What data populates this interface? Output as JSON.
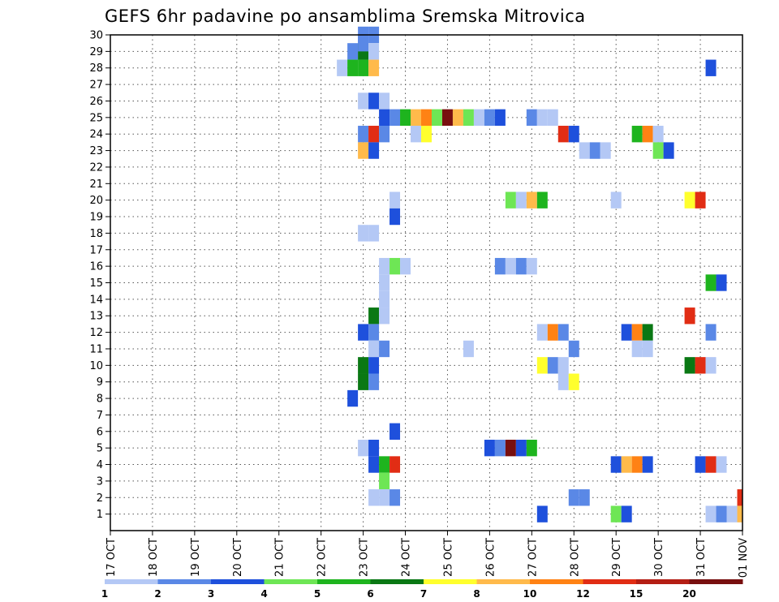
{
  "chart_data": {
    "type": "heatmap",
    "title": "GEFS 6hr padavine po ansamblima Sremska Mitrovica",
    "xlabel": "",
    "ylabel": "",
    "x_ticks": [
      "17 OCT",
      "18 OCT",
      "19 OCT",
      "20 OCT",
      "21 OCT",
      "22 OCT",
      "23 OCT",
      "24 OCT",
      "25 OCT",
      "26 OCT",
      "27 OCT",
      "28 OCT",
      "29 OCT",
      "30 OCT",
      "31 OCT",
      "01 NOV"
    ],
    "y_ticks": [
      1,
      2,
      3,
      4,
      5,
      6,
      7,
      8,
      9,
      10,
      11,
      12,
      13,
      14,
      15,
      16,
      17,
      18,
      19,
      20,
      21,
      22,
      23,
      24,
      25,
      26,
      27,
      28,
      29,
      30
    ],
    "grid": true,
    "x_start": "17 OCT 00Z",
    "time_step_hours": 6,
    "colorbar": {
      "labels": [
        "1",
        "2",
        "3",
        "4",
        "5",
        "6",
        "7",
        "8",
        "10",
        "12",
        "15",
        "20"
      ],
      "colors": [
        "#b4c8f5",
        "#5a88e6",
        "#1e50dc",
        "#6ee655",
        "#1eb41e",
        "#0a7814",
        "#ffff2d",
        "#ffba4b",
        "#ff8214",
        "#e12d14",
        "#b41e14",
        "#780f0f"
      ]
    },
    "cells": [
      {
        "x": "23 OCT 00Z",
        "y": 30,
        "class": 2
      },
      {
        "x": "23 OCT 06Z",
        "y": 30,
        "class": 2
      },
      {
        "x": "22 OCT 18Z",
        "y": 29,
        "class": 2
      },
      {
        "x": "23 OCT 00Z",
        "y": 29,
        "class": 6
      },
      {
        "x": "23 OCT 00Z",
        "y": 29.5,
        "class": 2
      },
      {
        "x": "23 OCT 06Z",
        "y": 29,
        "class": 1
      },
      {
        "x": "22 OCT 12Z",
        "y": 28,
        "class": 1
      },
      {
        "x": "22 OCT 18Z",
        "y": 28,
        "class": 5
      },
      {
        "x": "23 OCT 00Z",
        "y": 28,
        "class": 5
      },
      {
        "x": "23 OCT 06Z",
        "y": 28,
        "class": 8
      },
      {
        "x": "31 OCT 06Z",
        "y": 28,
        "class": 3
      },
      {
        "x": "23 OCT 00Z",
        "y": 26,
        "class": 1
      },
      {
        "x": "23 OCT 06Z",
        "y": 26,
        "class": 3
      },
      {
        "x": "23 OCT 12Z",
        "y": 26,
        "class": 1
      },
      {
        "x": "23 OCT 12Z",
        "y": 25,
        "class": 3
      },
      {
        "x": "23 OCT 18Z",
        "y": 25,
        "class": 2
      },
      {
        "x": "24 OCT 00Z",
        "y": 25,
        "class": 5
      },
      {
        "x": "24 OCT 06Z",
        "y": 25,
        "class": 8
      },
      {
        "x": "24 OCT 12Z",
        "y": 25,
        "class": 9
      },
      {
        "x": "24 OCT 18Z",
        "y": 25,
        "class": 4
      },
      {
        "x": "25 OCT 00Z",
        "y": 25,
        "class": 12
      },
      {
        "x": "25 OCT 06Z",
        "y": 25,
        "class": 8
      },
      {
        "x": "25 OCT 12Z",
        "y": 25,
        "class": 4
      },
      {
        "x": "25 OCT 18Z",
        "y": 25,
        "class": 1
      },
      {
        "x": "26 OCT 00Z",
        "y": 25,
        "class": 2
      },
      {
        "x": "26 OCT 06Z",
        "y": 25,
        "class": 3
      },
      {
        "x": "27 OCT 00Z",
        "y": 25,
        "class": 2
      },
      {
        "x": "27 OCT 06Z",
        "y": 25,
        "class": 1
      },
      {
        "x": "27 OCT 12Z",
        "y": 25,
        "class": 1
      },
      {
        "x": "23 OCT 00Z",
        "y": 24,
        "class": 2
      },
      {
        "x": "23 OCT 06Z",
        "y": 24,
        "class": 10
      },
      {
        "x": "23 OCT 12Z",
        "y": 24,
        "class": 2
      },
      {
        "x": "24 OCT 06Z",
        "y": 24,
        "class": 1
      },
      {
        "x": "24 OCT 12Z",
        "y": 24,
        "class": 7
      },
      {
        "x": "27 OCT 18Z",
        "y": 24,
        "class": 10
      },
      {
        "x": "28 OCT 00Z",
        "y": 24,
        "class": 3
      },
      {
        "x": "29 OCT 12Z",
        "y": 24,
        "class": 5
      },
      {
        "x": "29 OCT 18Z",
        "y": 24,
        "class": 9
      },
      {
        "x": "30 OCT 00Z",
        "y": 24,
        "class": 1
      },
      {
        "x": "23 OCT 00Z",
        "y": 23,
        "class": 8
      },
      {
        "x": "23 OCT 06Z",
        "y": 23,
        "class": 3
      },
      {
        "x": "28 OCT 06Z",
        "y": 23,
        "class": 1
      },
      {
        "x": "28 OCT 12Z",
        "y": 23,
        "class": 2
      },
      {
        "x": "28 OCT 18Z",
        "y": 23,
        "class": 1
      },
      {
        "x": "30 OCT 00Z",
        "y": 23,
        "class": 4
      },
      {
        "x": "30 OCT 06Z",
        "y": 23,
        "class": 3
      },
      {
        "x": "23 OCT 18Z",
        "y": 20,
        "class": 1
      },
      {
        "x": "26 OCT 12Z",
        "y": 20,
        "class": 4
      },
      {
        "x": "26 OCT 18Z",
        "y": 20,
        "class": 1
      },
      {
        "x": "27 OCT 00Z",
        "y": 20,
        "class": 8
      },
      {
        "x": "27 OCT 06Z",
        "y": 20,
        "class": 5
      },
      {
        "x": "29 OCT 00Z",
        "y": 20,
        "class": 1
      },
      {
        "x": "30 OCT 18Z",
        "y": 20,
        "class": 7
      },
      {
        "x": "31 OCT 00Z",
        "y": 20,
        "class": 10
      },
      {
        "x": "23 OCT 18Z",
        "y": 19,
        "class": 3
      },
      {
        "x": "23 OCT 00Z",
        "y": 18,
        "class": 1
      },
      {
        "x": "23 OCT 06Z",
        "y": 18,
        "class": 1
      },
      {
        "x": "23 OCT 12Z",
        "y": 16,
        "class": 1
      },
      {
        "x": "23 OCT 18Z",
        "y": 16,
        "class": 4
      },
      {
        "x": "24 OCT 00Z",
        "y": 16,
        "class": 1
      },
      {
        "x": "26 OCT 06Z",
        "y": 16,
        "class": 2
      },
      {
        "x": "26 OCT 12Z",
        "y": 16,
        "class": 1
      },
      {
        "x": "26 OCT 18Z",
        "y": 16,
        "class": 2
      },
      {
        "x": "27 OCT 00Z",
        "y": 16,
        "class": 1
      },
      {
        "x": "23 OCT 12Z",
        "y": 15,
        "class": 1
      },
      {
        "x": "31 OCT 06Z",
        "y": 15,
        "class": 5
      },
      {
        "x": "31 OCT 12Z",
        "y": 15,
        "class": 3
      },
      {
        "x": "23 OCT 12Z",
        "y": 14,
        "class": 1
      },
      {
        "x": "23 OCT 06Z",
        "y": 13,
        "class": 6
      },
      {
        "x": "23 OCT 12Z",
        "y": 13,
        "class": 1
      },
      {
        "x": "30 OCT 18Z",
        "y": 13,
        "class": 10
      },
      {
        "x": "23 OCT 00Z",
        "y": 12,
        "class": 3
      },
      {
        "x": "23 OCT 06Z",
        "y": 12,
        "class": 2
      },
      {
        "x": "27 OCT 06Z",
        "y": 12,
        "class": 1
      },
      {
        "x": "27 OCT 12Z",
        "y": 12,
        "class": 9
      },
      {
        "x": "27 OCT 18Z",
        "y": 12,
        "class": 2
      },
      {
        "x": "29 OCT 06Z",
        "y": 12,
        "class": 3
      },
      {
        "x": "29 OCT 12Z",
        "y": 12,
        "class": 9
      },
      {
        "x": "29 OCT 18Z",
        "y": 12,
        "class": 6
      },
      {
        "x": "31 OCT 06Z",
        "y": 12,
        "class": 2
      },
      {
        "x": "23 OCT 06Z",
        "y": 11,
        "class": 1
      },
      {
        "x": "23 OCT 12Z",
        "y": 11,
        "class": 2
      },
      {
        "x": "25 OCT 12Z",
        "y": 11,
        "class": 1
      },
      {
        "x": "28 OCT 00Z",
        "y": 11,
        "class": 2
      },
      {
        "x": "29 OCT 12Z",
        "y": 11,
        "class": 1
      },
      {
        "x": "29 OCT 18Z",
        "y": 11,
        "class": 1
      },
      {
        "x": "23 OCT 00Z",
        "y": 10,
        "class": 6
      },
      {
        "x": "23 OCT 06Z",
        "y": 10,
        "class": 3
      },
      {
        "x": "27 OCT 06Z",
        "y": 10,
        "class": 7
      },
      {
        "x": "27 OCT 12Z",
        "y": 10,
        "class": 2
      },
      {
        "x": "27 OCT 18Z",
        "y": 10,
        "class": 1
      },
      {
        "x": "30 OCT 18Z",
        "y": 10,
        "class": 6
      },
      {
        "x": "31 OCT 00Z",
        "y": 10,
        "class": 10
      },
      {
        "x": "31 OCT 06Z",
        "y": 10,
        "class": 1
      },
      {
        "x": "23 OCT 00Z",
        "y": 9,
        "class": 6
      },
      {
        "x": "23 OCT 06Z",
        "y": 9,
        "class": 2
      },
      {
        "x": "27 OCT 18Z",
        "y": 9,
        "class": 1
      },
      {
        "x": "28 OCT 00Z",
        "y": 9,
        "class": 7
      },
      {
        "x": "22 OCT 18Z",
        "y": 8,
        "class": 3
      },
      {
        "x": "23 OCT 18Z",
        "y": 6,
        "class": 3
      },
      {
        "x": "23 OCT 00Z",
        "y": 5,
        "class": 1
      },
      {
        "x": "23 OCT 06Z",
        "y": 5,
        "class": 3
      },
      {
        "x": "26 OCT 00Z",
        "y": 5,
        "class": 3
      },
      {
        "x": "26 OCT 06Z",
        "y": 5,
        "class": 2
      },
      {
        "x": "26 OCT 12Z",
        "y": 5,
        "class": 12
      },
      {
        "x": "26 OCT 18Z",
        "y": 5,
        "class": 3
      },
      {
        "x": "27 OCT 00Z",
        "y": 5,
        "class": 5
      },
      {
        "x": "23 OCT 06Z",
        "y": 4,
        "class": 3
      },
      {
        "x": "23 OCT 12Z",
        "y": 4,
        "class": 5
      },
      {
        "x": "23 OCT 18Z",
        "y": 4,
        "class": 10
      },
      {
        "x": "29 OCT 00Z",
        "y": 4,
        "class": 3
      },
      {
        "x": "29 OCT 06Z",
        "y": 4,
        "class": 8
      },
      {
        "x": "29 OCT 12Z",
        "y": 4,
        "class": 9
      },
      {
        "x": "29 OCT 18Z",
        "y": 4,
        "class": 3
      },
      {
        "x": "31 OCT 00Z",
        "y": 4,
        "class": 3
      },
      {
        "x": "31 OCT 06Z",
        "y": 4,
        "class": 10
      },
      {
        "x": "31 OCT 12Z",
        "y": 4,
        "class": 1
      },
      {
        "x": "23 OCT 12Z",
        "y": 3,
        "class": 4
      },
      {
        "x": "23 OCT 06Z",
        "y": 2,
        "class": 1
      },
      {
        "x": "23 OCT 12Z",
        "y": 2,
        "class": 1
      },
      {
        "x": "23 OCT 18Z",
        "y": 2,
        "class": 2
      },
      {
        "x": "28 OCT 00Z",
        "y": 2,
        "class": 2
      },
      {
        "x": "28 OCT 06Z",
        "y": 2,
        "class": 2
      },
      {
        "x": "01 NOV 00Z",
        "y": 2,
        "class": 10
      },
      {
        "x": "27 OCT 06Z",
        "y": 1,
        "class": 3
      },
      {
        "x": "29 OCT 00Z",
        "y": 1,
        "class": 4
      },
      {
        "x": "29 OCT 06Z",
        "y": 1,
        "class": 3
      },
      {
        "x": "31 OCT 06Z",
        "y": 1,
        "class": 1
      },
      {
        "x": "31 OCT 12Z",
        "y": 1,
        "class": 2
      },
      {
        "x": "31 OCT 18Z",
        "y": 1,
        "class": 1
      },
      {
        "x": "01 NOV 00Z",
        "y": 1,
        "class": 8
      }
    ]
  }
}
